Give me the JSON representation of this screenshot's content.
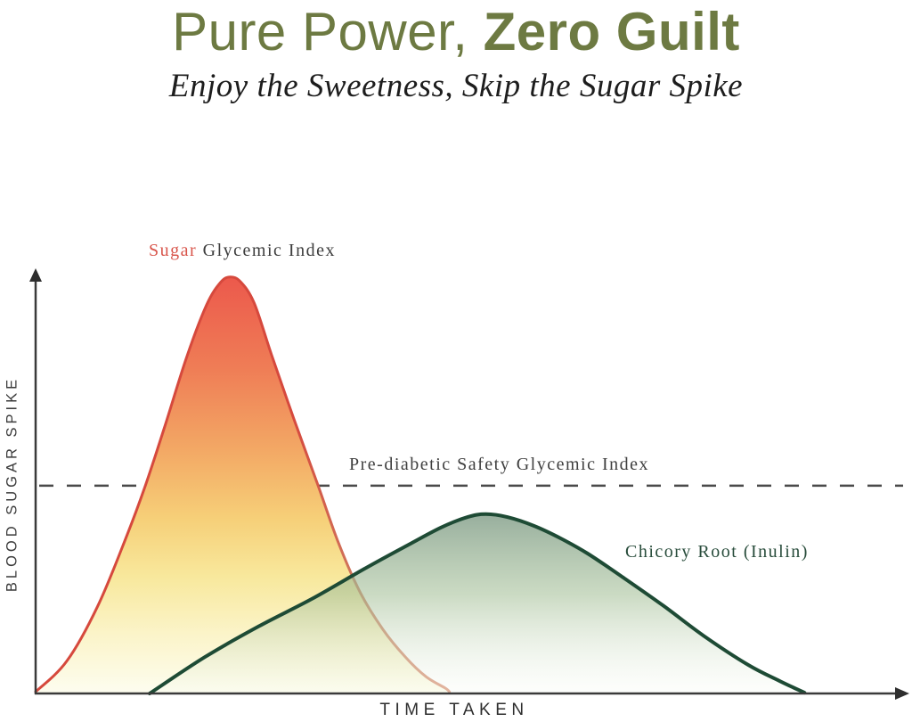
{
  "page": {
    "title_part1": "Pure Power, ",
    "title_part2": "Zero Guilt",
    "subtitle": "Enjoy the Sweetness, Skip the Sugar Spike",
    "title_color": "#6d7a42"
  },
  "chart_data": {
    "type": "area",
    "title": "",
    "xlabel": "TIME TAKEN",
    "ylabel": "BLOOD SUGAR SPIKE",
    "xlim": [
      0,
      100
    ],
    "ylim": [
      0,
      100
    ],
    "axes_quantitative": false,
    "grid": false,
    "threshold": {
      "label": "Pre-diabetic Safety Glycemic Index",
      "y": 49.6,
      "style": "dashed",
      "color": "#4a4a4a"
    },
    "series": [
      {
        "name": "Sugar Glycemic Index",
        "label_accent": "Sugar",
        "label_rest": " Glycemic Index",
        "stroke_color": "#d6493d",
        "accent_color": "#d8544a",
        "peak": {
          "x": 22.5,
          "y": 99.4
        },
        "points": [
          [
            0,
            0.4
          ],
          [
            3.6,
            7.7
          ],
          [
            7.2,
            20.9
          ],
          [
            10.6,
            37.9
          ],
          [
            12.7,
            49.6
          ],
          [
            14.9,
            63.4
          ],
          [
            17.5,
            80.4
          ],
          [
            19.8,
            92.8
          ],
          [
            21.4,
            98.1
          ],
          [
            22.5,
            99.4
          ],
          [
            23.7,
            98.3
          ],
          [
            25.3,
            93.2
          ],
          [
            27.3,
            80.9
          ],
          [
            29.9,
            65.5
          ],
          [
            32.7,
            49.6
          ],
          [
            35.1,
            35.7
          ],
          [
            37.6,
            24.0
          ],
          [
            40.2,
            15.3
          ],
          [
            42.8,
            8.7
          ],
          [
            45.2,
            4.0
          ],
          [
            47.4,
            1.3
          ],
          [
            47.9,
            0.4
          ]
        ]
      },
      {
        "name": "Chicory Root (Inulin)",
        "stroke_color": "#1e4b35",
        "accent_color": "#284c3b",
        "peak": {
          "x": 52.1,
          "y": 42.8
        },
        "points": [
          [
            13.2,
            0.0
          ],
          [
            19.6,
            8.7
          ],
          [
            25.8,
            16.0
          ],
          [
            32.0,
            22.6
          ],
          [
            38.1,
            29.8
          ],
          [
            42.8,
            35.1
          ],
          [
            46.9,
            39.6
          ],
          [
            50.0,
            42.1
          ],
          [
            52.1,
            42.8
          ],
          [
            54.6,
            42.1
          ],
          [
            57.7,
            40.0
          ],
          [
            60.8,
            37.0
          ],
          [
            63.9,
            33.4
          ],
          [
            68.0,
            27.7
          ],
          [
            72.7,
            20.9
          ],
          [
            77.3,
            13.8
          ],
          [
            82.5,
            6.8
          ],
          [
            86.1,
            3.0
          ],
          [
            89.0,
            0.2
          ]
        ]
      }
    ]
  }
}
